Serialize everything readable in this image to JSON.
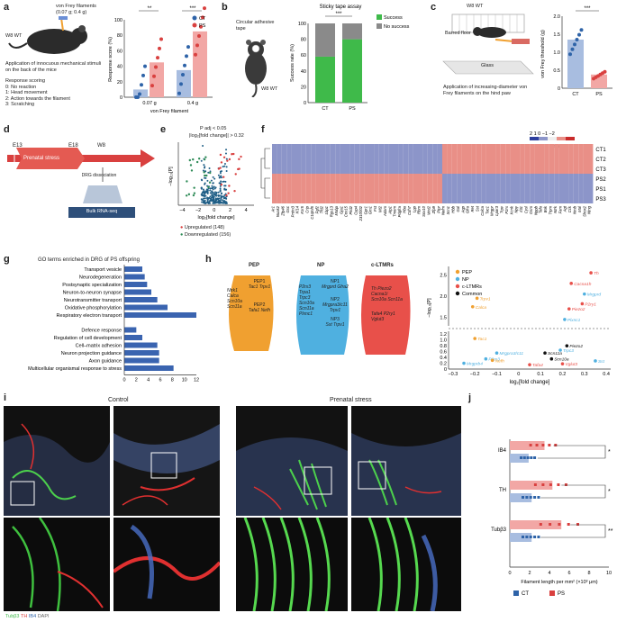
{
  "colors": {
    "ct": "#2e63a8",
    "ps": "#d9403f",
    "ps_bar": "#f2a7a5",
    "ct_bar": "#a8bde0",
    "success": "#3fba4a",
    "nosuccess": "#8a8a8a",
    "pep": "#f0a030",
    "np": "#4fb0e0",
    "cltmr": "#e8504a",
    "common": "#111111"
  },
  "panel_a": {
    "letter": "a",
    "filaments": "von Frey filaments",
    "filaments_range": "(0.07 g; 0.4 g)",
    "mouse": "W8 WT",
    "application": "Application of innocuous mechanical stimuli on the back of the mice",
    "scoring_title": "Response scoring",
    "scores": [
      "0: No reaction",
      "1: Head movement",
      "2: Action towards the filament",
      "3: Scratching"
    ],
    "chart_data": {
      "type": "bar",
      "categories": [
        "0.07 g",
        "0.4 g"
      ],
      "series": [
        {
          "name": "CT",
          "values": [
            10,
            35
          ]
        },
        {
          "name": "PS",
          "values": [
            45,
            85
          ]
        }
      ],
      "ylabel": "Response score (%)",
      "xlabel": "von Frey filament",
      "ylim": [
        0,
        100
      ],
      "yticks": [
        "0",
        "20",
        "40",
        "60",
        "80",
        "100"
      ],
      "significance": [
        "**",
        "***"
      ],
      "legend": [
        "CT",
        "PS"
      ]
    }
  },
  "panel_b": {
    "letter": "b",
    "tape": "Circular adhesive tape",
    "mouse": "W8 WT",
    "chart_data": {
      "type": "bar",
      "title": "Sticky tape assay",
      "categories": [
        "CT",
        "PS"
      ],
      "series": [
        {
          "name": "Success",
          "values": [
            58,
            80
          ]
        },
        {
          "name": "No success",
          "values": [
            42,
            20
          ]
        }
      ],
      "ylabel": "Success rate (%)",
      "ylim": [
        0,
        100
      ],
      "yticks": [
        "0",
        "20",
        "40",
        "60",
        "80",
        "100"
      ],
      "significance": "***"
    }
  },
  "panel_c": {
    "letter": "c",
    "mouse": "W8 WT",
    "floor": "Barred floor",
    "glass": "Glass",
    "application": "Application of increasing-diameter von Frey filaments on the hind paw",
    "chart_data": {
      "type": "bar",
      "categories": [
        "CT",
        "PS"
      ],
      "values": [
        1.35,
        0.38
      ],
      "ylabel": "von Frey threshold (g)",
      "ylim": [
        0,
        2.0
      ],
      "yticks": [
        "0",
        "0.5",
        "1.0",
        "1.5",
        "2.0"
      ],
      "significance": "***"
    }
  },
  "panel_d": {
    "letter": "d",
    "e13": "E13",
    "e18": "E18",
    "w8": "W8",
    "stress": "Prenatal stress",
    "drg": "DRG dissociation",
    "bulk": "Bulk RNA-seq"
  },
  "panel_e": {
    "letter": "e",
    "padj": "P adj < 0.05",
    "fc": "|log₂[fold change]| > 0.32",
    "chart_data": {
      "type": "scatter",
      "xlabel": "log₂[fold change]",
      "ylabel": "−log₁₀[P]",
      "xticks": [
        "−4",
        "−2",
        "0",
        "2",
        "4"
      ],
      "xlim": [
        -4.5,
        5
      ],
      "legend": [
        "Upregulated (148)",
        "Downregulated (156)"
      ]
    }
  },
  "panel_f": {
    "letter": "f",
    "scale": [
      "2",
      "1",
      "0",
      "−1",
      "−2"
    ],
    "zscore": "z-score",
    "rows": [
      "CT1",
      "CT2",
      "CT3",
      "PS2",
      "PS1",
      "PS3"
    ],
    "genes": [
      "Ar1",
      "Nuak2",
      "Zfp46",
      "Gsc",
      "Prdm3",
      "Kl14",
      "Ksr5",
      "Crip",
      "C1qtnf5",
      "Fgf2",
      "Tfd2",
      "Lbp1",
      "Rgs13",
      "Mobp",
      "Gja1",
      "Cox15",
      "Pkd2",
      "Cyp4",
      "2310002",
      "Gpr1",
      "Gm1",
      "Fst",
      "Mt2",
      "Adam",
      "Atp1",
      "Tmem",
      "Pdgfra",
      "Hba",
      "Cdh7",
      "Lpp",
      "Rbm",
      "Sox10",
      "Wnt2",
      "Zfp9",
      "Ptpr",
      "Nefm",
      "Scn1",
      "Hbb",
      "Gal",
      "Aqp",
      "Gfra",
      "Ret",
      "Sst",
      "Calca",
      "Tac1",
      "Mrgpr",
      "Lpar3",
      "Trpv",
      "P2rx",
      "Kcnk",
      "Npy",
      "Il31",
      "Cysl",
      "Osm",
      "Nppb",
      "Tafa",
      "Bok",
      "Trpm",
      "Ntrk",
      "Fam",
      "Agt",
      "Cck",
      "Nmb",
      "Mal",
      "Shox2",
      "Ntng"
    ],
    "cmap": [
      "#2d3f9e",
      "#8c95c9",
      "#efefef",
      "#e98f87",
      "#c92a2a"
    ]
  },
  "panel_g": {
    "letter": "g",
    "title": "GO terms enriched in DRG of PS offspring",
    "chart_data": {
      "type": "bar",
      "orientation": "horizontal",
      "xlabel": "Enrichment ratio",
      "xticks": [
        "0",
        "2",
        "4",
        "6",
        "8",
        "10",
        "12"
      ],
      "xlim": [
        0,
        12
      ],
      "groups": [
        {
          "categories": [
            "Transport vesicle",
            "Neurodegeneration",
            "Postsynaptic specialization",
            "Neuron-to-neuron synapse",
            "Neurotransmitter transport",
            "Oxidative phosphorylation",
            "Respiratory electron transport"
          ],
          "values": [
            3.0,
            3.4,
            3.8,
            4.5,
            5.5,
            7.2,
            12.0
          ]
        },
        {
          "categories": [
            "Defence response",
            "Regulation of cell development",
            "Cell–matrix adhesion",
            "Neuron projection guidance",
            "Axon guidance",
            "Multicellular organismal response to stress"
          ],
          "values": [
            2.0,
            3.0,
            5.5,
            5.8,
            5.8,
            8.2
          ]
        }
      ]
    }
  },
  "panel_h": {
    "letter": "h",
    "groups": [
      {
        "title": "PEP",
        "sub1": "PEP1",
        "genes1": "Tac1 Trpv1",
        "sub2": "PEP2",
        "genes2": "Tafa1 Nefh",
        "side": "Ntrk1 Calca Scn10a Scn11a"
      },
      {
        "title": "NP",
        "sub1": "NP1",
        "genes1": "Mrgprd Gfra2",
        "sub2": "NP2",
        "genes2": "Mrgpra3/c11 Trpv1",
        "sub3": "NP3",
        "genes3": "Sst Trpv1",
        "side": "P2rx3 Trpa1 Trpc3 Scn10a Scn11a Plxnc1"
      },
      {
        "title": "c-LTMRs",
        "genes1": "Th Piezo2 Cacna1i Scn10a Scn11a",
        "side": "Th Piezo2 Cacna1i Scn10a Scn11a",
        "genes2": "Tafa4 P2ry1 Vglut3"
      }
    ],
    "chart_data": {
      "type": "scatter",
      "xlabel": "log₂[fold change]",
      "ylabel": "−log₁₀[P]",
      "xticks": [
        "−0.3",
        "−0.2",
        "−0.1",
        "0",
        "0.1",
        "0.2",
        "0.3",
        "0.4"
      ],
      "yticks_top": [
        "2.5",
        "2.0",
        "1.5"
      ],
      "yticks_bottom": [
        "1.2",
        "1.0",
        "0.8",
        "0.6",
        "0.4",
        "0.2",
        "0"
      ],
      "legend": [
        "PEP",
        "NP",
        "c-LTMRs",
        "Common"
      ],
      "points": [
        {
          "g": "Th",
          "x": 0.33,
          "y": 2.55,
          "c": "cltmr"
        },
        {
          "g": "Cacna1h",
          "x": 0.24,
          "y": 2.3,
          "c": "cltmr"
        },
        {
          "g": "Mrgprd",
          "x": 0.3,
          "y": 2.05,
          "c": "np"
        },
        {
          "g": "P2ry1",
          "x": 0.29,
          "y": 1.82,
          "c": "cltmr"
        },
        {
          "g": "Trpv1",
          "x": -0.19,
          "y": 1.95,
          "c": "pep"
        },
        {
          "g": "Calca",
          "x": -0.21,
          "y": 1.75,
          "c": "pep"
        },
        {
          "g": "Piezo2",
          "x": 0.23,
          "y": 1.7,
          "c": "cltmr"
        },
        {
          "g": "Plxnc1",
          "x": 0.21,
          "y": 1.45,
          "c": "np"
        },
        {
          "g": "Tac1",
          "x": -0.2,
          "y": 1.05,
          "c": "pep"
        },
        {
          "g": "Piezo2",
          "x": 0.22,
          "y": 0.8,
          "c": "common"
        },
        {
          "g": "Trpc3",
          "x": 0.19,
          "y": 0.65,
          "c": "np"
        },
        {
          "g": "Mrgpra3/c11",
          "x": -0.1,
          "y": 0.55,
          "c": "np"
        },
        {
          "g": "Scn11a",
          "x": 0.12,
          "y": 0.55,
          "c": "common"
        },
        {
          "g": "P2rx3",
          "x": -0.15,
          "y": 0.35,
          "c": "np"
        },
        {
          "g": "Nefh",
          "x": -0.12,
          "y": 0.3,
          "c": "pep"
        },
        {
          "g": "Scn10a",
          "x": 0.15,
          "y": 0.35,
          "c": "common"
        },
        {
          "g": "Sst",
          "x": 0.35,
          "y": 0.28,
          "c": "np"
        },
        {
          "g": "Mrgprb4",
          "x": -0.25,
          "y": 0.2,
          "c": "np"
        },
        {
          "g": "Tafa4",
          "x": 0.05,
          "y": 0.15,
          "c": "cltmr"
        },
        {
          "g": "Vglut3",
          "x": 0.2,
          "y": 0.18,
          "c": "cltmr"
        }
      ]
    }
  },
  "panel_i": {
    "letter": "i",
    "control": "Control",
    "stress": "Prenatal stress",
    "legend_tubb3": "Tubβ3",
    "legend_th": "TH",
    "legend_ib4": "IB4",
    "legend_dapi": "DAPI"
  },
  "panel_j": {
    "letter": "j",
    "chart_data": {
      "type": "bar",
      "orientation": "horizontal",
      "categories": [
        "IB4",
        "TH",
        "Tubβ3"
      ],
      "series": [
        {
          "name": "CT",
          "values": [
            1.9,
            2.2,
            2.2
          ]
        },
        {
          "name": "PS",
          "values": [
            3.5,
            4.3,
            5.2
          ]
        }
      ],
      "xlabel": "Filament length per mm² (×10³ μm)",
      "xticks": [
        "0",
        "2",
        "4",
        "6",
        "8",
        "10"
      ],
      "xlim": [
        0,
        10
      ],
      "significance": [
        "*",
        "*",
        "**"
      ],
      "legend": [
        "CT",
        "PS"
      ]
    }
  }
}
